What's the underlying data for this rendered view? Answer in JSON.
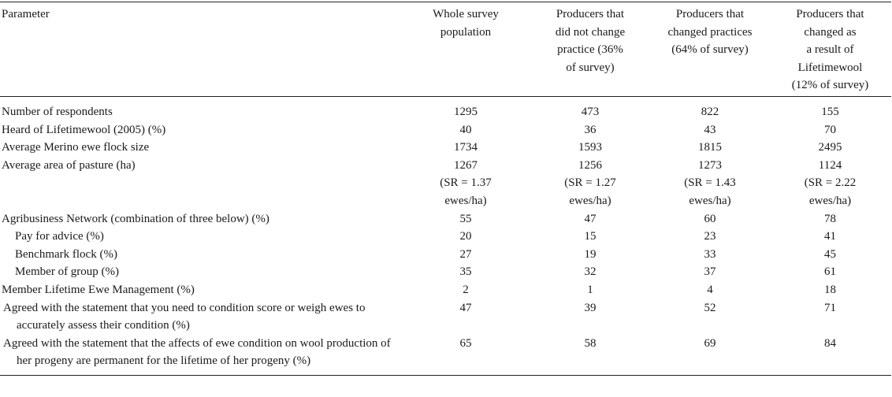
{
  "table": {
    "headers": [
      "Parameter",
      [
        "Whole survey",
        "population"
      ],
      [
        "Producers that",
        "did not change",
        "practice (36%",
        "of survey)"
      ],
      [
        "Producers that",
        "changed practices",
        "(64% of survey)"
      ],
      [
        "Producers that",
        "changed as",
        "a result of",
        "Lifetimewool",
        "(12% of survey)"
      ]
    ],
    "rows": [
      {
        "param": "Number of respondents",
        "values": [
          "1295",
          "473",
          "822",
          "155"
        ]
      },
      {
        "param": "Heard of Lifetimewool (2005) (%)",
        "values": [
          "40",
          "36",
          "43",
          "70"
        ]
      },
      {
        "param": "Average Merino ewe flock size",
        "values": [
          "1734",
          "1593",
          "1815",
          "2495"
        ]
      },
      {
        "param": "Average area of pasture (ha)",
        "values": [
          "1267",
          "1256",
          "1273",
          "1124"
        ],
        "sr": [
          [
            "(SR = 1.37",
            "ewes/ha)"
          ],
          [
            "(SR = 1.27",
            "ewes/ha)"
          ],
          [
            "(SR = 1.43",
            "ewes/ha)"
          ],
          [
            "(SR = 2.22",
            "ewes/ha)"
          ]
        ]
      },
      {
        "param": "Agribusiness Network (combination of three below) (%)",
        "values": [
          "55",
          "47",
          "60",
          "78"
        ]
      },
      {
        "param": "Pay for advice (%)",
        "values": [
          "20",
          "15",
          "23",
          "41"
        ],
        "indent": true
      },
      {
        "param": "Benchmark flock (%)",
        "values": [
          "27",
          "19",
          "33",
          "45"
        ],
        "indent": true
      },
      {
        "param": "Member of group (%)",
        "values": [
          "35",
          "32",
          "37",
          "61"
        ],
        "indent": true
      },
      {
        "param": "Member Lifetime Ewe Management (%)",
        "values": [
          "2",
          "1",
          "4",
          "18"
        ]
      },
      {
        "param": "Agreed with the statement that you need to condition score or weigh ewes to accurately assess their condition (%)",
        "values": [
          "47",
          "39",
          "52",
          "71"
        ]
      },
      {
        "param": "Agreed with the statement that the affects of ewe condition on wool production of her progeny are permanent for the lifetime of her progeny (%)",
        "values": [
          "65",
          "58",
          "69",
          "84"
        ]
      }
    ]
  }
}
